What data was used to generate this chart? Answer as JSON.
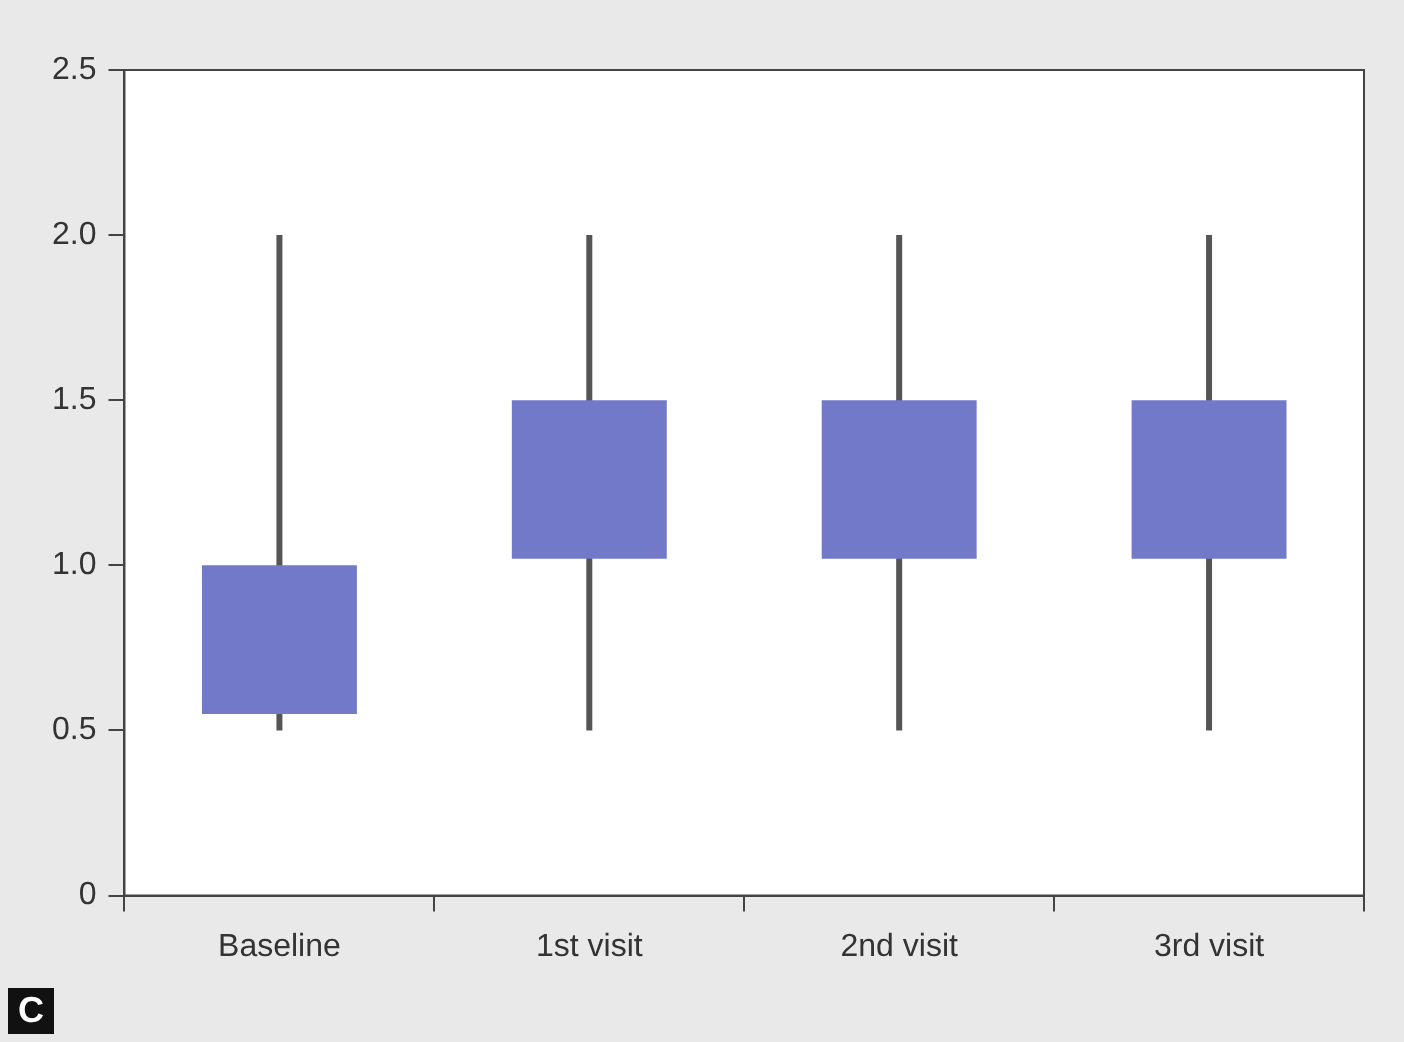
{
  "chart_data": {
    "type": "bar",
    "categories": [
      "Baseline",
      "1st visit",
      "2nd visit",
      "3rd visit"
    ],
    "base": [
      0.55,
      1.02,
      1.02,
      1.02
    ],
    "values": [
      0.45,
      0.48,
      0.48,
      0.48
    ],
    "errors": [
      [
        0.5,
        2.0
      ],
      [
        0.5,
        2.0
      ],
      [
        0.5,
        2.0
      ],
      [
        0.5,
        2.0
      ]
    ],
    "color": "#7379c9",
    "ylim": [
      0,
      2.5
    ],
    "yticks": [
      0,
      {
        "value": 0.5,
        "label": "0.5"
      },
      {
        "value": 1,
        "label": "1.0"
      },
      {
        "value": 1.5,
        "label": "1.5"
      },
      {
        "value": 2,
        "label": "2.0"
      },
      {
        "value": 2.5,
        "label": "2.5"
      }
    ],
    "grid": false,
    "legend": false,
    "annotations": [
      "C"
    ]
  }
}
